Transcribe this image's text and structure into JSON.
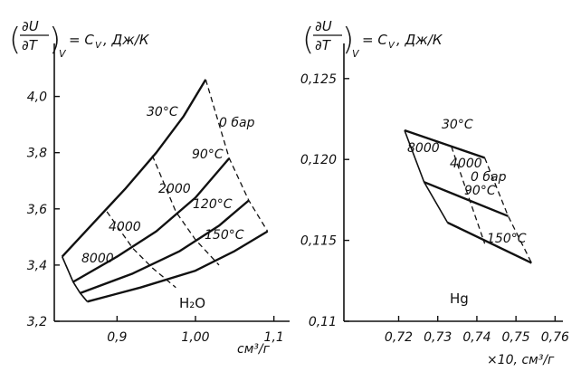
{
  "chart_data": [
    {
      "type": "line",
      "title_top": "∂U",
      "title_bottom": "∂T",
      "title_sub": "V",
      "title_rhs": "= C",
      "title_rhs_sub": "V",
      "title_units": ", Дж/К",
      "xlabel": "см³/г",
      "xlim": [
        0.82,
        1.12
      ],
      "ylim": [
        3.2,
        4.15
      ],
      "xticks": [
        "0,9",
        "1,00",
        "1,1"
      ],
      "xtick_values": [
        0.9,
        1.0,
        1.1
      ],
      "yticks": [
        "3,2",
        "3,4",
        "3,6",
        "3,8",
        "4,0"
      ],
      "ytick_values": [
        3.2,
        3.4,
        3.6,
        3.8,
        4.0
      ],
      "substance": "H₂O",
      "isotherms": [
        {
          "name": "30°C",
          "points": [
            [
              0.83,
              3.43
            ],
            [
              0.87,
              3.55
            ],
            [
              0.91,
              3.67
            ],
            [
              0.95,
              3.8
            ],
            [
              0.985,
              3.93
            ],
            [
              1.013,
              4.06
            ]
          ]
        },
        {
          "name": "90°C",
          "points": [
            [
              0.844,
              3.34
            ],
            [
              0.9,
              3.43
            ],
            [
              0.95,
              3.52
            ],
            [
              1.0,
              3.64
            ],
            [
              1.043,
              3.78
            ]
          ]
        },
        {
          "name": "120°C",
          "points": [
            [
              0.853,
              3.3
            ],
            [
              0.92,
              3.37
            ],
            [
              0.98,
              3.45
            ],
            [
              1.03,
              3.54
            ],
            [
              1.068,
              3.63
            ]
          ]
        },
        {
          "name": "150°C",
          "points": [
            [
              0.862,
              3.27
            ],
            [
              0.93,
              3.32
            ],
            [
              1.0,
              3.38
            ],
            [
              1.05,
              3.45
            ],
            [
              1.092,
              3.52
            ]
          ]
        }
      ],
      "isobars": [
        {
          "name": "0 бар",
          "points": [
            [
              1.013,
              4.06
            ],
            [
              1.043,
              3.78
            ],
            [
              1.068,
              3.63
            ],
            [
              1.092,
              3.52
            ]
          ]
        },
        {
          "name": "2000",
          "points": [
            [
              0.945,
              3.79
            ],
            [
              0.975,
              3.59
            ],
            [
              1.0,
              3.49
            ],
            [
              1.03,
              3.4
            ]
          ]
        },
        {
          "name": "4000",
          "points": [
            [
              0.887,
              3.59
            ],
            [
              0.92,
              3.46
            ],
            [
              0.945,
              3.39
            ],
            [
              0.975,
              3.32
            ]
          ]
        },
        {
          "name": "8000",
          "points": [
            [
              0.83,
              3.43
            ],
            [
              0.844,
              3.34
            ],
            [
              0.853,
              3.3
            ],
            [
              0.862,
              3.27
            ]
          ]
        }
      ],
      "isotherm_labels": [
        "30°C",
        "90°C",
        "120°C",
        "150°C"
      ],
      "isobar_labels": [
        "0 бар",
        "2000",
        "4000",
        "8000"
      ]
    },
    {
      "type": "line",
      "title_top": "∂U",
      "title_bottom": "∂T",
      "title_sub": "V",
      "title_rhs": "= C",
      "title_rhs_sub": "V",
      "title_units": ", Дж/К",
      "xlabel": "×10, см³/г",
      "xlim": [
        0.706,
        0.762
      ],
      "ylim": [
        0.11,
        0.1265
      ],
      "xticks": [
        "0,72",
        "0,73",
        "0,74",
        "0,75",
        "0,76"
      ],
      "xtick_values": [
        0.72,
        0.73,
        0.74,
        0.75,
        0.76
      ],
      "yticks": [
        "0,11",
        "0,115",
        "0,120",
        "0,125"
      ],
      "ytick_values": [
        0.11,
        0.115,
        0.12,
        0.125
      ],
      "substance": "Hg",
      "isotherms": [
        {
          "name": "30°C",
          "points": [
            [
              0.7215,
              0.1218
            ],
            [
              0.742,
              0.1201
            ]
          ]
        },
        {
          "name": "90°C",
          "points": [
            [
              0.7265,
              0.1186
            ],
            [
              0.748,
              0.1165
            ]
          ]
        },
        {
          "name": "150°C",
          "points": [
            [
              0.7325,
              0.1161
            ],
            [
              0.754,
              0.1136
            ]
          ]
        }
      ],
      "isobars": [
        {
          "name": "0 бар",
          "points": [
            [
              0.742,
              0.1201
            ],
            [
              0.748,
              0.1165
            ],
            [
              0.754,
              0.1136
            ]
          ]
        },
        {
          "name": "4000",
          "points": [
            [
              0.7335,
              0.1208
            ],
            [
              0.738,
              0.1176
            ],
            [
              0.742,
              0.1148
            ]
          ]
        },
        {
          "name": "8000",
          "points": [
            [
              0.7215,
              0.1218
            ],
            [
              0.7265,
              0.1186
            ],
            [
              0.7325,
              0.1161
            ]
          ]
        }
      ],
      "isotherm_labels": [
        "30°C",
        "90°C",
        "150°C"
      ],
      "isobar_labels": [
        "0 бар",
        "4000",
        "8000"
      ]
    }
  ]
}
